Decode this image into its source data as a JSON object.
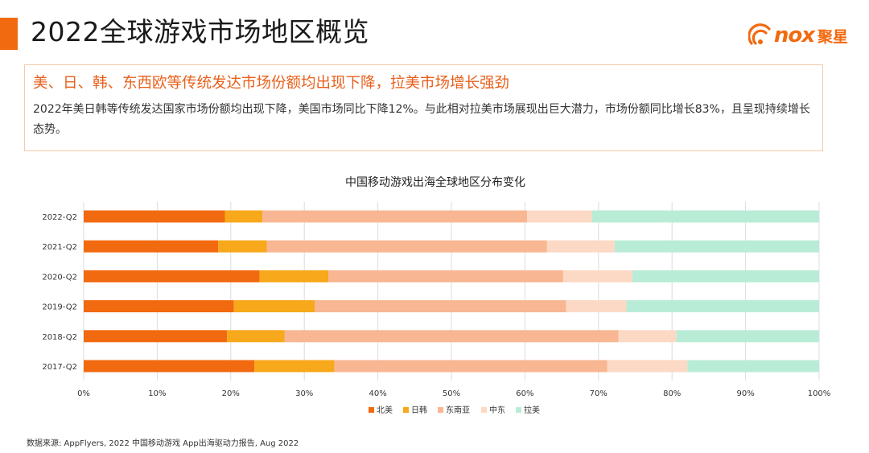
{
  "header": {
    "title": "2022全球游戏市场地区概览",
    "accent_color": "#f26a10",
    "logo": {
      "text": "nox",
      "cn_text": "聚星",
      "icon": "nox-signal-logo-icon"
    }
  },
  "summary": {
    "headline": "美、日、韩、东西欧等传统发达市场份额均出现下降，拉美市场增长强劲",
    "body": "2022年美日韩等传统发达国家市场份额均出现下降，美国市场同比下降12%。与此相对拉美市场展现出巨大潜力，市场份额同比增长83%，且呈现持续增长态势。"
  },
  "chart_data": {
    "type": "bar",
    "orientation": "horizontal",
    "stacked": true,
    "percent_stacked": true,
    "title": "中国移动游戏出海全球地区分布变化",
    "categories": [
      "2022-Q2",
      "2021-Q2",
      "2020-Q2",
      "2019-Q2",
      "2018-Q2",
      "2017-Q2"
    ],
    "x_ticks": [
      "0%",
      "10%",
      "20%",
      "30%",
      "40%",
      "50%",
      "60%",
      "70%",
      "80%",
      "90%",
      "100%"
    ],
    "xlim": [
      0,
      100
    ],
    "grid": true,
    "legend_position": "bottom",
    "series": [
      {
        "name": "北美",
        "color": "#f26a10",
        "values": [
          19.2,
          18.3,
          23.9,
          20.4,
          19.5,
          23.2
        ]
      },
      {
        "name": "日韩",
        "color": "#f7a81b",
        "values": [
          5.1,
          6.6,
          9.4,
          11.0,
          7.8,
          10.9
        ]
      },
      {
        "name": "东南亚",
        "color": "#f8b792",
        "values": [
          36.0,
          38.1,
          31.9,
          34.2,
          45.4,
          37.1
        ]
      },
      {
        "name": "中东",
        "color": "#fcd9c4",
        "values": [
          8.8,
          9.2,
          9.4,
          8.2,
          7.9,
          10.9
        ]
      },
      {
        "name": "拉美",
        "color": "#b9ecd6",
        "values": [
          30.9,
          27.8,
          25.4,
          26.2,
          19.4,
          17.9
        ]
      }
    ]
  },
  "footer": {
    "source": "数据来源: AppFlyers, 2022 中国移动游戏 App出海驱动力报告, Aug 2022"
  }
}
